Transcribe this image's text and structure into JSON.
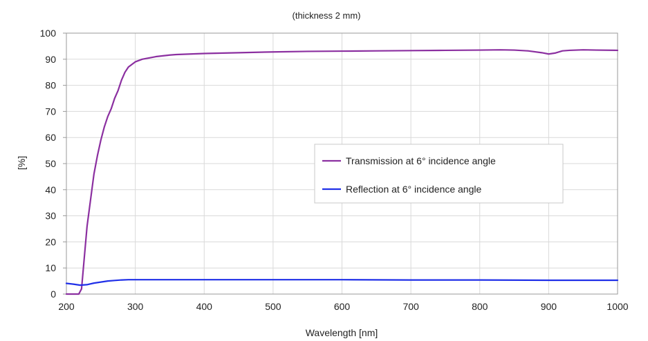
{
  "chart_data": {
    "type": "line",
    "title": "",
    "subtitle": "(thickness 2 mm)",
    "xlabel": "Wavelength [nm]",
    "ylabel": "[%]",
    "xlim": [
      200,
      1000
    ],
    "ylim": [
      0,
      100
    ],
    "x_ticks": [
      200,
      300,
      400,
      500,
      600,
      700,
      800,
      900,
      1000
    ],
    "y_ticks": [
      0,
      10,
      20,
      30,
      40,
      50,
      60,
      70,
      80,
      90,
      100
    ],
    "grid": true,
    "legend_position": "center-right",
    "series": [
      {
        "name": "Transmission at 6° incidence angle",
        "color": "#8B2FA0",
        "x": [
          200,
          210,
          218,
          222,
          226,
          230,
          235,
          240,
          245,
          250,
          255,
          260,
          265,
          270,
          275,
          280,
          285,
          290,
          295,
          300,
          310,
          320,
          330,
          340,
          350,
          360,
          380,
          400,
          450,
          500,
          550,
          600,
          650,
          700,
          750,
          800,
          830,
          850,
          870,
          890,
          900,
          910,
          920,
          930,
          950,
          970,
          1000
        ],
        "y": [
          0,
          0,
          0,
          2,
          14,
          26,
          36,
          46,
          53,
          59,
          64,
          68,
          71,
          75,
          78,
          82,
          85,
          87,
          88,
          89,
          90,
          90.5,
          91,
          91.3,
          91.6,
          91.8,
          92,
          92.2,
          92.5,
          92.8,
          93,
          93.1,
          93.2,
          93.3,
          93.4,
          93.5,
          93.6,
          93.5,
          93.2,
          92.5,
          92,
          92.4,
          93.2,
          93.4,
          93.6,
          93.5,
          93.4
        ]
      },
      {
        "name": "Reflection at 6° incidence angle",
        "color": "#1F2FE8",
        "x": [
          200,
          210,
          220,
          230,
          240,
          250,
          260,
          270,
          280,
          290,
          300,
          350,
          400,
          500,
          600,
          700,
          800,
          900,
          1000
        ],
        "y": [
          4.1,
          3.8,
          3.4,
          3.6,
          4.2,
          4.6,
          5,
          5.2,
          5.4,
          5.5,
          5.5,
          5.5,
          5.5,
          5.5,
          5.5,
          5.4,
          5.4,
          5.3,
          5.3
        ]
      }
    ]
  }
}
